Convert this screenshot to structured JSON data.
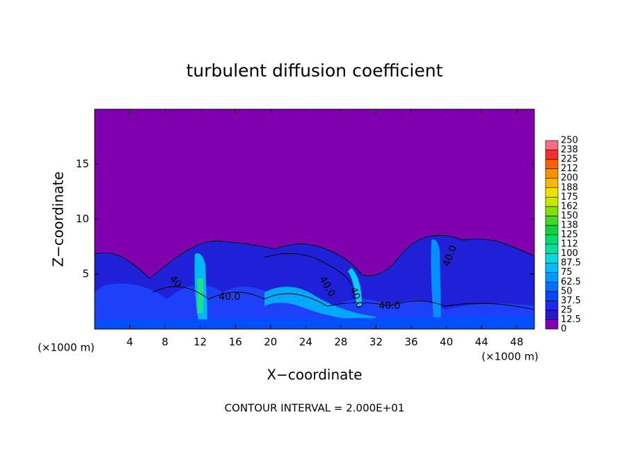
{
  "chart_data": {
    "type": "contour",
    "title": "turbulent diffusion coefficient",
    "xlabel": "X−coordinate",
    "ylabel": "Z−coordinate",
    "x_unit_label": "(×1000 m)",
    "footer": "CONTOUR INTERVAL = 2.000E+01",
    "xlim": [
      0,
      50
    ],
    "xticks": [
      4,
      8,
      12,
      16,
      20,
      24,
      28,
      32,
      36,
      40,
      44,
      48
    ],
    "ylim": [
      0,
      20
    ],
    "yticks": [
      5,
      10,
      15
    ],
    "contour_labels": [
      "40.0",
      "40.0",
      "40.0",
      "40.0",
      "40",
      "40.0"
    ],
    "colorbar": {
      "levels": [
        0,
        12.5,
        25,
        37.5,
        50,
        62.5,
        75,
        87.5,
        100,
        {
          "value": 112.5,
          "label": "112"
        },
        125,
        {
          "value": 137.5,
          "label": "138"
        },
        150,
        {
          "value": 162.5,
          "label": "162"
        },
        175,
        {
          "value": 187.5,
          "label": "188"
        },
        200,
        {
          "value": 212.5,
          "label": "212"
        },
        225,
        {
          "value": 237.5,
          "label": "238"
        },
        250
      ],
      "colors": [
        "#8000b0",
        "#2818c8",
        "#1e28f0",
        "#0048ff",
        "#0070ff",
        "#0098ff",
        "#00bcff",
        "#00dcdc",
        "#00e0a0",
        "#00d870",
        "#10d040",
        "#40d820",
        "#80e000",
        "#c8e800",
        "#f0e000",
        "#f8b800",
        "#f89000",
        "#f86000",
        "#f03030",
        "#f07080"
      ]
    }
  }
}
